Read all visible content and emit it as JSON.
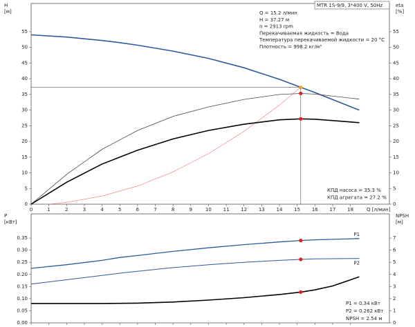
{
  "chart_data": [
    {
      "type": "line",
      "header": "MTR 1S-9/9, 3*400 V, 50Hz",
      "info": [
        "Q = 15.2 л/мин",
        "H = 37.27 м",
        "n = 2913 rpm",
        "Перекачиваемая жидкость = Вода",
        "Температура перекачиваемой жидкости = 20 °C",
        "Плотность = 998.2 кг/м³"
      ],
      "results": [
        "КПД насоса = 35.3 %",
        "КПД агрегата = 27.2 %"
      ],
      "ylabel": "H",
      "yunit": "[м]",
      "y2label": "eta",
      "y2unit": "[%]",
      "xlabel": "Q [л/мин]",
      "xlim": [
        0,
        20.2
      ],
      "xticks": [
        0,
        1,
        2,
        3,
        4,
        5,
        6,
        7,
        8,
        9,
        10,
        11,
        12,
        13,
        14,
        15,
        16,
        17,
        18
      ],
      "ylim": [
        0,
        64
      ],
      "yticks": [
        0,
        5,
        10,
        15,
        20,
        25,
        30,
        35,
        40,
        45,
        50,
        55
      ],
      "y2lim": [
        0,
        64
      ],
      "y2ticks": [
        0,
        5,
        10,
        15,
        20,
        25,
        30,
        35,
        40,
        45,
        50,
        55
      ],
      "duty_q": 15.2,
      "series": [
        {
          "color": "#2b5a9a",
          "width": 1.6,
          "marker_color": "#f5a623",
          "x": [
            0,
            2,
            4,
            5,
            6,
            8,
            10,
            12,
            14,
            15.2,
            16,
            18.5
          ],
          "values": [
            54,
            53.3,
            52.2,
            51.5,
            50.7,
            48.8,
            46.5,
            43.5,
            39.8,
            37.27,
            35.6,
            30
          ]
        },
        {
          "color": "#f07070",
          "width": 0.6,
          "x": [
            1,
            2,
            4,
            6,
            8,
            10,
            12,
            14,
            15.2
          ],
          "values": [
            0,
            0.6,
            2.6,
            5.8,
            10.3,
            16.1,
            23.2,
            31.6,
            37.27
          ]
        },
        {
          "color": "#444444",
          "width": 0.8,
          "axis": "y2",
          "marker_color": "#e02020",
          "x": [
            0,
            2,
            4,
            5,
            6,
            8,
            10,
            12,
            14,
            15.2,
            16,
            18.5
          ],
          "values": [
            0,
            9.5,
            17.5,
            20.5,
            23.5,
            28,
            31,
            33.4,
            35,
            35.3,
            35.1,
            33.5
          ]
        },
        {
          "color": "#000000",
          "width": 1.6,
          "axis": "y2",
          "marker_color": "#e02020",
          "x": [
            0,
            2,
            4,
            5,
            6,
            8,
            10,
            12,
            14,
            15.2,
            16,
            18.5
          ],
          "values": [
            0,
            7,
            12.8,
            15,
            17.2,
            20.8,
            23.5,
            25.5,
            26.9,
            27.2,
            27.1,
            26
          ]
        }
      ]
    },
    {
      "type": "line",
      "results": [
        "P1 = 0.34 кВт",
        "P2 = 0.262 кВт",
        "NPSH = 2.54 м"
      ],
      "ylabel": "P",
      "yunit": "[кВт]",
      "y2label": "NPSH",
      "y2unit": "[м]",
      "xlim": [
        0,
        20.2
      ],
      "ylim": [
        0,
        0.45
      ],
      "yticks": [
        {
          "value": 0,
          "label": "0.00"
        },
        {
          "value": 0.05,
          "label": "0.05"
        },
        {
          "value": 0.1,
          "label": "0.10"
        },
        {
          "value": 0.15,
          "label": "0.15"
        },
        {
          "value": 0.2,
          "label": "0.20"
        },
        {
          "value": 0.25,
          "label": "0.25"
        },
        {
          "value": 0.3,
          "label": "0.30"
        },
        {
          "value": 0.35,
          "label": "0.35"
        }
      ],
      "y2lim": [
        0,
        9
      ],
      "y2ticks": [
        0,
        1,
        2,
        3,
        4,
        5,
        6,
        7
      ],
      "duty_q": 15.2,
      "series": [
        {
          "name": "P1",
          "color": "#2b5a9a",
          "width": 1.3,
          "marker_color": "#e02020",
          "x": [
            0,
            2,
            4,
            5,
            6,
            8,
            10,
            12,
            14,
            15.2,
            16,
            18.5
          ],
          "values": [
            0.225,
            0.24,
            0.258,
            0.27,
            0.278,
            0.295,
            0.31,
            0.323,
            0.334,
            0.34,
            0.343,
            0.348
          ]
        },
        {
          "name": "P2",
          "color": "#2b5a9a",
          "width": 1.0,
          "marker_color": "#e02020",
          "x": [
            0,
            2,
            4,
            5,
            6,
            8,
            10,
            12,
            14,
            15.2,
            16,
            18.5
          ],
          "values": [
            0.16,
            0.178,
            0.196,
            0.205,
            0.213,
            0.228,
            0.24,
            0.25,
            0.258,
            0.262,
            0.264,
            0.266
          ]
        },
        {
          "color": "#000000",
          "width": 1.6,
          "axis": "y2",
          "marker_color": "#e02020",
          "x": [
            0,
            2,
            4,
            6,
            8,
            10,
            12,
            14,
            15.2,
            16,
            17,
            18.5
          ],
          "values": [
            1.6,
            1.6,
            1.6,
            1.63,
            1.72,
            1.88,
            2.08,
            2.34,
            2.54,
            2.72,
            3.05,
            3.8
          ]
        }
      ]
    }
  ]
}
